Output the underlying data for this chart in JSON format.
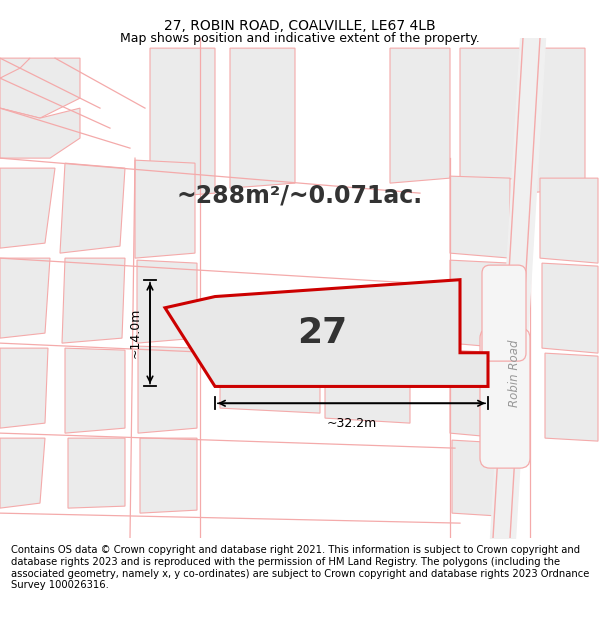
{
  "title_line1": "27, ROBIN ROAD, COALVILLE, LE67 4LB",
  "title_line2": "Map shows position and indicative extent of the property.",
  "area_text": "~288m²/~0.071ac.",
  "plot_number": "27",
  "dim_width": "~32.2m",
  "dim_height": "~14.0m",
  "footer": "Contains OS data © Crown copyright and database right 2021. This information is subject to Crown copyright and database rights 2023 and is reproduced with the permission of HM Land Registry. The polygons (including the associated geometry, namely x, y co-ordinates) are subject to Crown copyright and database rights 2023 Ordnance Survey 100026316.",
  "bg_color": "#ffffff",
  "plot_fill": "#e8e8e8",
  "plot_edge_color": "#cc0000",
  "road_line_color": "#f4aaaa",
  "block_color": "#ebebeb",
  "block_edge": "#f4aaaa",
  "title_fontsize": 10,
  "subtitle_fontsize": 9,
  "area_fontsize": 17,
  "number_fontsize": 26,
  "footer_fontsize": 7.2,
  "robin_road_color": "#c8c8c8"
}
